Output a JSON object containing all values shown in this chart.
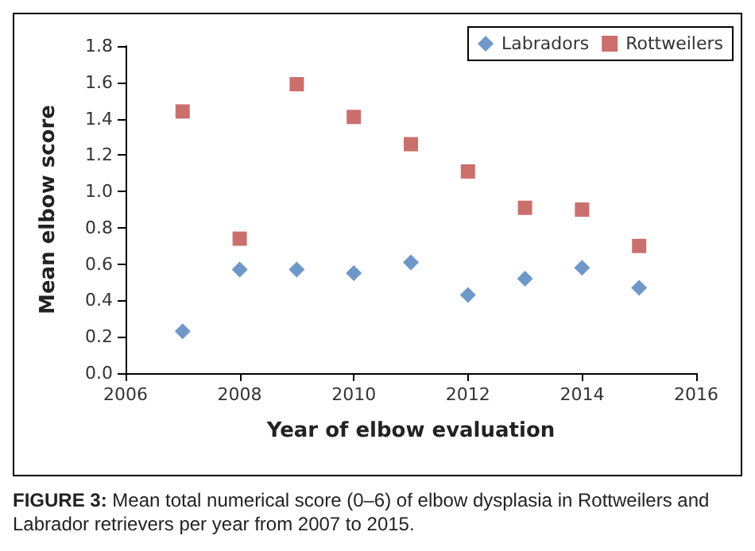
{
  "chart_data": {
    "type": "scatter",
    "xlabel": "Year of elbow evaluation",
    "ylabel": "Mean elbow score",
    "x": [
      2007,
      2008,
      2009,
      2010,
      2011,
      2012,
      2013,
      2014,
      2015
    ],
    "series": [
      {
        "name": "Labradors",
        "color": "#4a7ebb",
        "marker": "diamond",
        "values": [
          0.23,
          0.57,
          0.57,
          0.55,
          0.61,
          0.43,
          0.52,
          0.58,
          0.47
        ]
      },
      {
        "name": "Rottweilers",
        "color": "#be4b48",
        "marker": "square",
        "values": [
          1.44,
          0.74,
          1.59,
          1.41,
          1.26,
          1.11,
          0.91,
          0.9,
          0.7
        ]
      }
    ],
    "xlim": [
      2006,
      2016
    ],
    "xticks": [
      2006,
      2008,
      2010,
      2012,
      2014,
      2016
    ],
    "ylim": [
      0,
      1.8
    ],
    "yticks": [
      {
        "value": 0,
        "label": "0.0"
      },
      {
        "value": 0.2,
        "label": "0.2"
      },
      {
        "value": 0.4,
        "label": "0.4"
      },
      {
        "value": 0.6,
        "label": "0.6"
      },
      {
        "value": 0.8,
        "label": "0.8"
      },
      {
        "value": 1.0,
        "label": "1.0"
      },
      {
        "value": 1.2,
        "label": "1.2"
      },
      {
        "value": 1.4,
        "label": "1.4"
      },
      {
        "value": 1.6,
        "label": "1.6"
      },
      {
        "value": 1.8,
        "label": "1.8"
      }
    ],
    "grid": false,
    "legend": "top right",
    "annotations": [
      "FIGURE 3: Mean total numerical score (0–6) of elbow dysplasia in Rottweilers and Labrador retrievers per year from 2007 to 2015."
    ]
  }
}
